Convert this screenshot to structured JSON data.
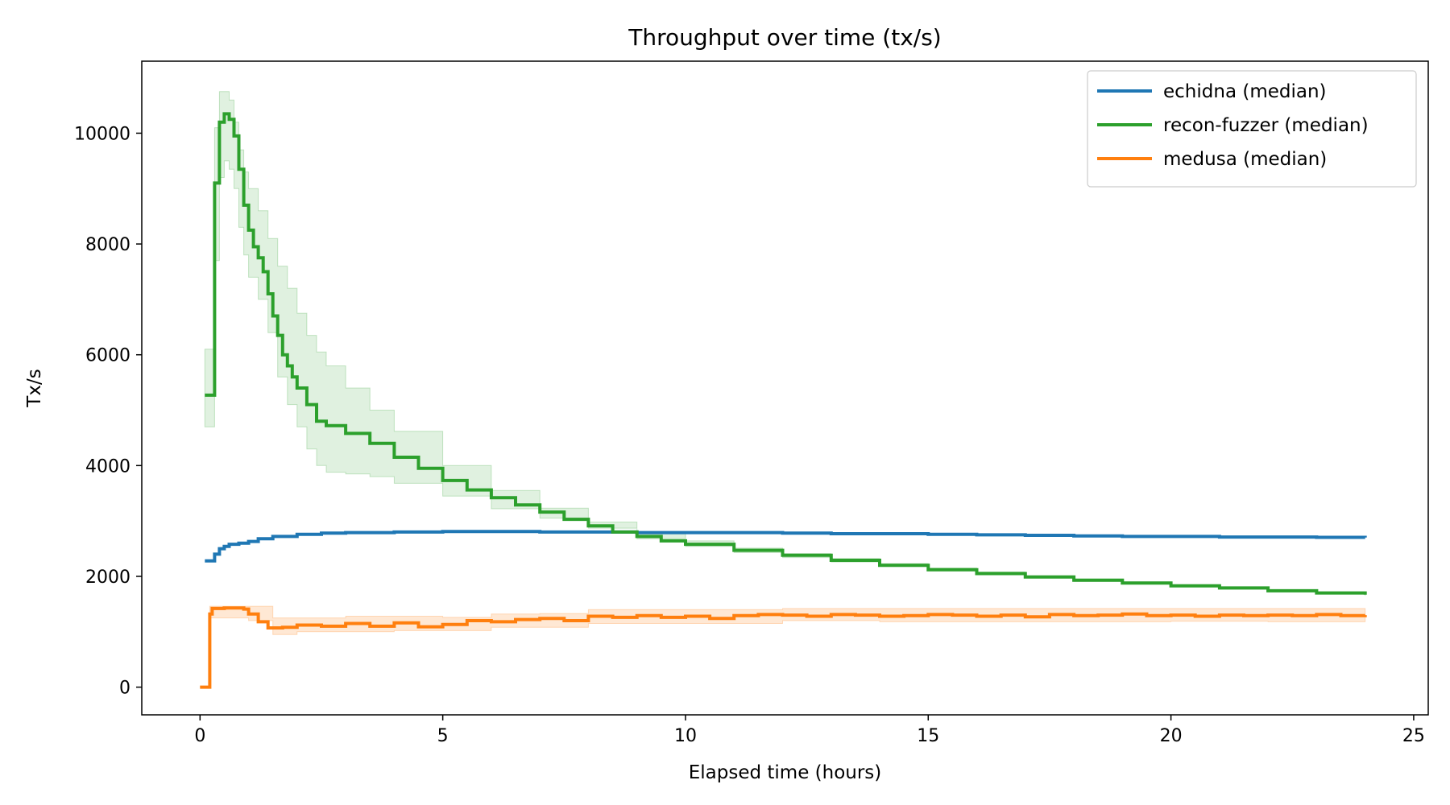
{
  "chart_data": {
    "type": "line",
    "title": "Throughput over time (tx/s)",
    "xlabel": "Elapsed time (hours)",
    "ylabel": "Tx/s",
    "xlim": [
      -1.2,
      25.3
    ],
    "ylim": [
      -500,
      11300
    ],
    "x_ticks": [
      0,
      5,
      10,
      15,
      20,
      25
    ],
    "y_ticks": [
      0,
      2000,
      4000,
      6000,
      8000,
      10000
    ],
    "x_tick_labels": [
      "0",
      "5",
      "10",
      "15",
      "20",
      "25"
    ],
    "y_tick_labels": [
      "0",
      "2000",
      "4000",
      "6000",
      "8000",
      "10000"
    ],
    "grid": false,
    "legend_position": "top-right",
    "series": [
      {
        "name": "echidna (median)",
        "color": "#1f77b4",
        "step": true,
        "points": [
          [
            0.1,
            2280
          ],
          [
            0.2,
            2280
          ],
          [
            0.3,
            2400
          ],
          [
            0.4,
            2500
          ],
          [
            0.5,
            2540
          ],
          [
            0.6,
            2580
          ],
          [
            0.8,
            2600
          ],
          [
            1.0,
            2630
          ],
          [
            1.2,
            2680
          ],
          [
            1.5,
            2720
          ],
          [
            2.0,
            2760
          ],
          [
            2.5,
            2780
          ],
          [
            3.0,
            2790
          ],
          [
            4.0,
            2800
          ],
          [
            5.0,
            2810
          ],
          [
            6.0,
            2810
          ],
          [
            7.0,
            2800
          ],
          [
            8.0,
            2800
          ],
          [
            9.0,
            2790
          ],
          [
            10.0,
            2790
          ],
          [
            11.0,
            2790
          ],
          [
            12.0,
            2780
          ],
          [
            13.0,
            2770
          ],
          [
            14.0,
            2770
          ],
          [
            15.0,
            2760
          ],
          [
            16.0,
            2750
          ],
          [
            17.0,
            2740
          ],
          [
            18.0,
            2730
          ],
          [
            19.0,
            2720
          ],
          [
            20.0,
            2720
          ],
          [
            21.0,
            2710
          ],
          [
            22.0,
            2710
          ],
          [
            23.0,
            2705
          ],
          [
            24.0,
            2700
          ]
        ]
      },
      {
        "name": "recon-fuzzer (median)",
        "color": "#2ca02c",
        "step": true,
        "points": [
          [
            0.1,
            5270
          ],
          [
            0.25,
            5270
          ],
          [
            0.3,
            9100
          ],
          [
            0.4,
            10200
          ],
          [
            0.5,
            10350
          ],
          [
            0.6,
            10250
          ],
          [
            0.7,
            9950
          ],
          [
            0.8,
            9350
          ],
          [
            0.9,
            8700
          ],
          [
            1.0,
            8250
          ],
          [
            1.1,
            7950
          ],
          [
            1.2,
            7750
          ],
          [
            1.3,
            7500
          ],
          [
            1.4,
            7100
          ],
          [
            1.5,
            6700
          ],
          [
            1.6,
            6350
          ],
          [
            1.7,
            6000
          ],
          [
            1.8,
            5800
          ],
          [
            1.9,
            5600
          ],
          [
            2.0,
            5400
          ],
          [
            2.2,
            5100
          ],
          [
            2.4,
            4800
          ],
          [
            2.6,
            4720
          ],
          [
            3.0,
            4580
          ],
          [
            3.5,
            4400
          ],
          [
            4.0,
            4150
          ],
          [
            4.5,
            3950
          ],
          [
            5.0,
            3730
          ],
          [
            5.5,
            3560
          ],
          [
            6.0,
            3420
          ],
          [
            6.5,
            3290
          ],
          [
            7.0,
            3160
          ],
          [
            7.5,
            3030
          ],
          [
            8.0,
            2910
          ],
          [
            8.5,
            2800
          ],
          [
            9.0,
            2720
          ],
          [
            9.5,
            2640
          ],
          [
            10.0,
            2580
          ],
          [
            11.0,
            2470
          ],
          [
            12.0,
            2380
          ],
          [
            13.0,
            2290
          ],
          [
            14.0,
            2200
          ],
          [
            15.0,
            2120
          ],
          [
            16.0,
            2050
          ],
          [
            17.0,
            1990
          ],
          [
            18.0,
            1930
          ],
          [
            19.0,
            1880
          ],
          [
            20.0,
            1830
          ],
          [
            21.0,
            1790
          ],
          [
            22.0,
            1740
          ],
          [
            23.0,
            1700
          ],
          [
            24.0,
            1670
          ]
        ]
      },
      {
        "name": "medusa (median)",
        "color": "#ff7f0e",
        "step": true,
        "points": [
          [
            0.0,
            0
          ],
          [
            0.15,
            0
          ],
          [
            0.2,
            1320
          ],
          [
            0.25,
            1420
          ],
          [
            0.5,
            1430
          ],
          [
            0.9,
            1410
          ],
          [
            1.0,
            1320
          ],
          [
            1.2,
            1180
          ],
          [
            1.4,
            1070
          ],
          [
            1.7,
            1080
          ],
          [
            2.0,
            1120
          ],
          [
            2.5,
            1100
          ],
          [
            3.0,
            1150
          ],
          [
            3.5,
            1100
          ],
          [
            4.0,
            1160
          ],
          [
            4.5,
            1090
          ],
          [
            5.0,
            1130
          ],
          [
            5.5,
            1200
          ],
          [
            6.0,
            1180
          ],
          [
            6.5,
            1220
          ],
          [
            7.0,
            1240
          ],
          [
            7.5,
            1200
          ],
          [
            8.0,
            1280
          ],
          [
            8.5,
            1260
          ],
          [
            9.0,
            1290
          ],
          [
            9.5,
            1260
          ],
          [
            10.0,
            1280
          ],
          [
            10.5,
            1240
          ],
          [
            11.0,
            1290
          ],
          [
            11.5,
            1310
          ],
          [
            12.0,
            1300
          ],
          [
            12.5,
            1280
          ],
          [
            13.0,
            1310
          ],
          [
            13.5,
            1300
          ],
          [
            14.0,
            1280
          ],
          [
            14.5,
            1290
          ],
          [
            15.0,
            1310
          ],
          [
            15.5,
            1300
          ],
          [
            16.0,
            1280
          ],
          [
            16.5,
            1300
          ],
          [
            17.0,
            1270
          ],
          [
            17.5,
            1310
          ],
          [
            18.0,
            1290
          ],
          [
            18.5,
            1300
          ],
          [
            19.0,
            1320
          ],
          [
            19.5,
            1290
          ],
          [
            20.0,
            1300
          ],
          [
            20.5,
            1280
          ],
          [
            21.0,
            1300
          ],
          [
            21.5,
            1290
          ],
          [
            22.0,
            1300
          ],
          [
            22.5,
            1290
          ],
          [
            23.0,
            1310
          ],
          [
            23.5,
            1290
          ],
          [
            24.0,
            1300
          ]
        ]
      }
    ],
    "bands": [
      {
        "series": "recon-fuzzer (median)",
        "color": "#2ca02c",
        "opacity": 0.15,
        "lower": [
          [
            0.1,
            4700
          ],
          [
            0.25,
            4700
          ],
          [
            0.3,
            7700
          ],
          [
            0.4,
            9200
          ],
          [
            0.5,
            9500
          ],
          [
            0.6,
            9350
          ],
          [
            0.7,
            9000
          ],
          [
            0.8,
            8300
          ],
          [
            0.9,
            7800
          ],
          [
            1.0,
            7400
          ],
          [
            1.2,
            7000
          ],
          [
            1.4,
            6400
          ],
          [
            1.6,
            5600
          ],
          [
            1.8,
            5100
          ],
          [
            2.0,
            4700
          ],
          [
            2.2,
            4300
          ],
          [
            2.4,
            4000
          ],
          [
            2.6,
            3880
          ],
          [
            3.0,
            3850
          ],
          [
            3.5,
            3800
          ],
          [
            4.0,
            3680
          ],
          [
            5.0,
            3450
          ],
          [
            6.0,
            3220
          ],
          [
            7.0,
            3050
          ],
          [
            8.0,
            2870
          ],
          [
            9.0,
            2680
          ],
          [
            10.0,
            2540
          ],
          [
            11.0,
            2430
          ],
          [
            12.0,
            2340
          ],
          [
            13.0,
            2260
          ],
          [
            14.0,
            2180
          ],
          [
            15.0,
            2100
          ],
          [
            16.0,
            2030
          ],
          [
            17.0,
            1970
          ],
          [
            18.0,
            1910
          ],
          [
            19.0,
            1860
          ],
          [
            20.0,
            1810
          ],
          [
            21.0,
            1770
          ],
          [
            22.0,
            1720
          ],
          [
            23.0,
            1680
          ],
          [
            24.0,
            1650
          ]
        ],
        "upper": [
          [
            0.1,
            6100
          ],
          [
            0.25,
            6100
          ],
          [
            0.3,
            10100
          ],
          [
            0.4,
            10750
          ],
          [
            0.5,
            10750
          ],
          [
            0.6,
            10600
          ],
          [
            0.7,
            10200
          ],
          [
            0.8,
            9700
          ],
          [
            0.9,
            9300
          ],
          [
            1.0,
            9000
          ],
          [
            1.2,
            8600
          ],
          [
            1.4,
            8100
          ],
          [
            1.6,
            7600
          ],
          [
            1.8,
            7200
          ],
          [
            2.0,
            6750
          ],
          [
            2.2,
            6350
          ],
          [
            2.4,
            6050
          ],
          [
            2.6,
            5800
          ],
          [
            3.0,
            5400
          ],
          [
            3.5,
            5000
          ],
          [
            4.0,
            4620
          ],
          [
            5.0,
            4000
          ],
          [
            6.0,
            3550
          ],
          [
            7.0,
            3230
          ],
          [
            8.0,
            2980
          ],
          [
            9.0,
            2790
          ],
          [
            10.0,
            2640
          ],
          [
            11.0,
            2510
          ],
          [
            12.0,
            2410
          ],
          [
            13.0,
            2320
          ],
          [
            14.0,
            2230
          ],
          [
            15.0,
            2150
          ],
          [
            16.0,
            2080
          ],
          [
            17.0,
            2010
          ],
          [
            18.0,
            1950
          ],
          [
            19.0,
            1900
          ],
          [
            20.0,
            1850
          ],
          [
            21.0,
            1810
          ],
          [
            22.0,
            1760
          ],
          [
            23.0,
            1720
          ],
          [
            24.0,
            1690
          ]
        ]
      },
      {
        "series": "medusa (median)",
        "color": "#ff7f0e",
        "opacity": 0.18,
        "lower": [
          [
            0.2,
            1250
          ],
          [
            1.0,
            1200
          ],
          [
            1.5,
            950
          ],
          [
            2.0,
            1000
          ],
          [
            3.0,
            1000
          ],
          [
            4.0,
            1020
          ],
          [
            5.0,
            1020
          ],
          [
            6.0,
            1080
          ],
          [
            7.0,
            1080
          ],
          [
            8.0,
            1150
          ],
          [
            10.0,
            1150
          ],
          [
            12.0,
            1200
          ],
          [
            14.0,
            1180
          ],
          [
            16.0,
            1180
          ],
          [
            18.0,
            1180
          ],
          [
            20.0,
            1190
          ],
          [
            22.0,
            1180
          ],
          [
            24.0,
            1180
          ]
        ],
        "upper": [
          [
            0.2,
            1460
          ],
          [
            1.0,
            1460
          ],
          [
            1.5,
            1250
          ],
          [
            2.0,
            1250
          ],
          [
            3.0,
            1280
          ],
          [
            4.0,
            1280
          ],
          [
            5.0,
            1260
          ],
          [
            6.0,
            1320
          ],
          [
            7.0,
            1330
          ],
          [
            8.0,
            1400
          ],
          [
            10.0,
            1400
          ],
          [
            12.0,
            1420
          ],
          [
            14.0,
            1420
          ],
          [
            16.0,
            1420
          ],
          [
            18.0,
            1420
          ],
          [
            20.0,
            1420
          ],
          [
            22.0,
            1420
          ],
          [
            24.0,
            1420
          ]
        ]
      }
    ]
  }
}
